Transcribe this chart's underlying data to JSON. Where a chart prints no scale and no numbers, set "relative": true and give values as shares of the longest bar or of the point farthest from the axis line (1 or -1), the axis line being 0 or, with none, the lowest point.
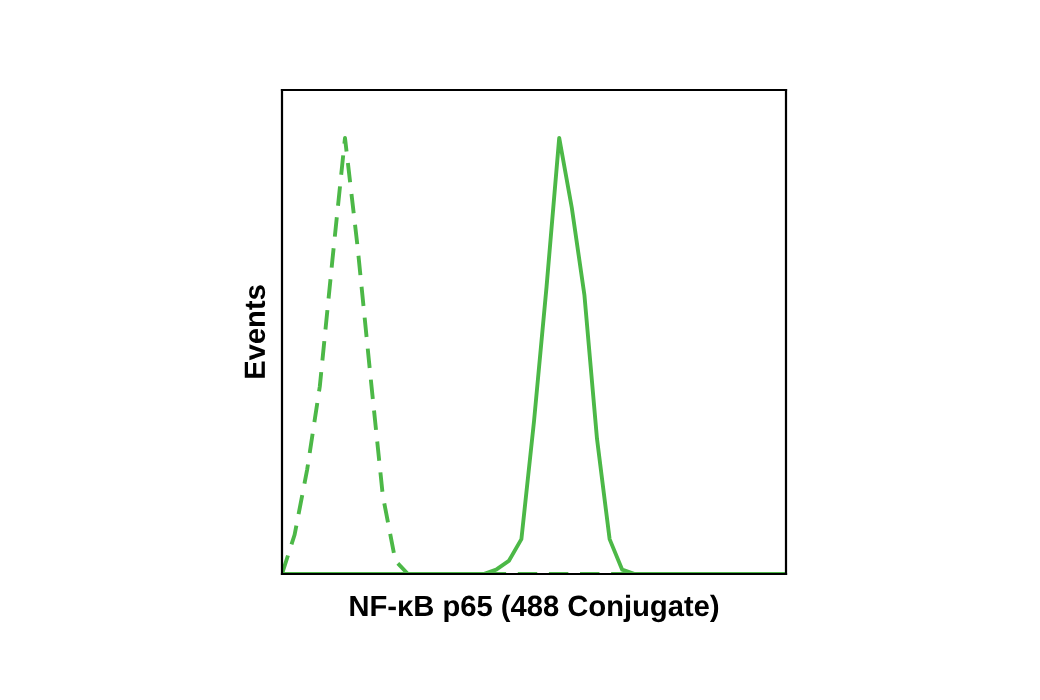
{
  "chart_data": {
    "type": "line",
    "relative": true,
    "xlabel": "NF-κB p65 (488 Conjugate)",
    "ylabel": "Events",
    "categories": [
      null,
      null,
      null,
      null,
      null,
      null,
      null,
      null,
      null,
      null,
      null,
      null,
      null,
      null,
      null,
      null,
      null,
      null,
      null,
      null,
      null,
      null,
      null,
      null,
      null,
      null,
      null,
      null,
      null,
      null,
      null,
      null,
      null,
      null,
      null,
      null,
      null,
      null,
      null,
      null,
      null
    ],
    "series": [
      {
        "color": "#4cb847",
        "line_style": "dashed",
        "values": [
          0,
          0.09,
          0.24,
          0.43,
          0.72,
          1.0,
          0.75,
          0.46,
          0.18,
          0.03,
          0,
          0,
          0,
          0,
          0,
          0,
          0,
          0,
          0,
          0,
          0,
          0,
          0,
          0,
          0,
          0,
          0,
          0,
          0,
          0,
          0,
          0,
          0,
          0,
          0,
          0,
          0,
          0,
          0,
          0,
          0
        ]
      },
      {
        "color": "#4cb847",
        "line_style": "solid",
        "values": [
          0,
          0,
          0,
          0,
          0,
          0,
          0,
          0,
          0,
          0,
          0,
          0,
          0,
          0,
          0,
          0,
          0,
          0.01,
          0.03,
          0.08,
          0.35,
          0.66,
          1.0,
          0.84,
          0.64,
          0.31,
          0.08,
          0.01,
          0,
          0,
          0,
          0,
          0,
          0,
          0,
          0,
          0,
          0,
          0,
          0,
          0
        ]
      }
    ],
    "grid": false,
    "legend": false
  }
}
